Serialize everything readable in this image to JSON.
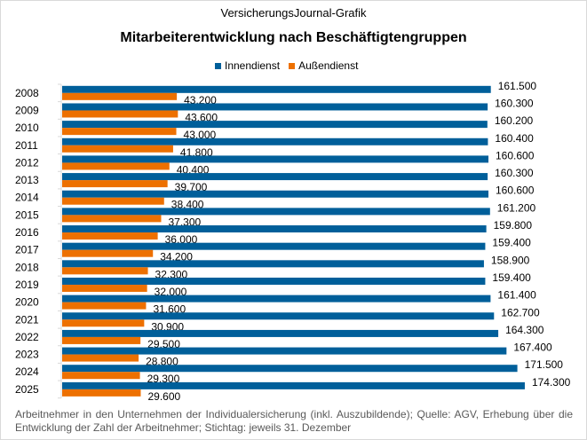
{
  "header": {
    "source_label": "VersicherungsJournal-Grafik"
  },
  "chart_data": {
    "type": "bar",
    "orientation": "horizontal",
    "title": "Mitarbeiterentwicklung nach Beschäftigtengruppen",
    "categories": [
      "2008",
      "2009",
      "2010",
      "2011",
      "2012",
      "2013",
      "2014",
      "2015",
      "2016",
      "2017",
      "2018",
      "2019",
      "2020",
      "2021",
      "2022",
      "2023",
      "2024",
      "2025"
    ],
    "series": [
      {
        "name": "Innendienst",
        "color": "#005f9a",
        "values": [
          161500,
          160300,
          160200,
          160400,
          160600,
          160300,
          160600,
          161200,
          159800,
          159400,
          158900,
          159400,
          161400,
          162700,
          164300,
          167400,
          171500,
          174300
        ],
        "labels": [
          "161.500",
          "160.300",
          "160.200",
          "160.400",
          "160.600",
          "160.300",
          "160.600",
          "161.200",
          "159.800",
          "159.400",
          "158.900",
          "159.400",
          "161.400",
          "162.700",
          "164.300",
          "167.400",
          "171.500",
          "174.300"
        ]
      },
      {
        "name": "Außendienst",
        "color": "#ed7000",
        "values": [
          43200,
          43600,
          43000,
          41800,
          40400,
          39700,
          38400,
          37300,
          36000,
          34200,
          32300,
          32000,
          31600,
          30900,
          29500,
          28800,
          29300,
          29600
        ],
        "labels": [
          "43.200",
          "43.600",
          "43.000",
          "41.800",
          "40.400",
          "39.700",
          "38.400",
          "37.300",
          "36.000",
          "34.200",
          "32.300",
          "32.000",
          "31.600",
          "30.900",
          "29.500",
          "28.800",
          "29.300",
          "29.600"
        ]
      }
    ],
    "xlim": [
      0,
      180000
    ],
    "grid": false,
    "legend": "top-center"
  },
  "footer": {
    "note": "Arbeitnehmer in den Unternehmen der Individualersicherung (inkl. Auszubildende); Quelle: AGV, Erhebung über die Entwicklung der Zahl der Arbeitnehmer; Stichtag: jeweils 31. Dezember"
  }
}
